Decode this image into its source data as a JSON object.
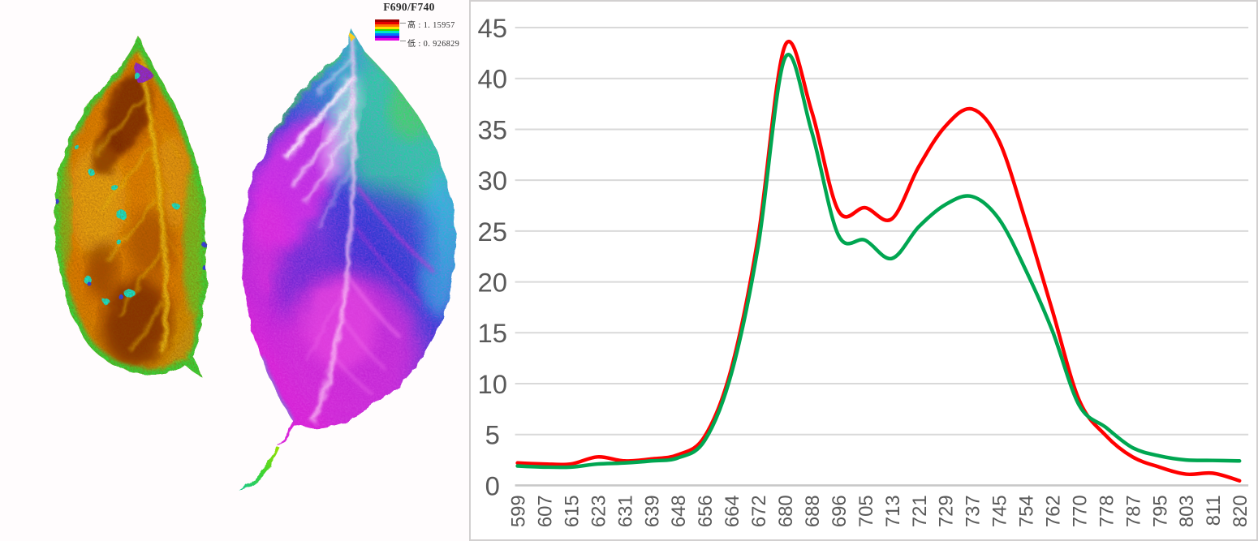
{
  "leaf_section": {
    "legend": {
      "title": "F690/F740",
      "high_label": "高",
      "high_separator": ":",
      "high_value": "1. 15957",
      "low_label": "低",
      "low_separator": ":",
      "low_value": "0. 926829",
      "colorbar_colors": [
        "#9b0000",
        "#e60000",
        "#ff7300",
        "#ffe100",
        "#2fdc00",
        "#00e6c8",
        "#0073ff",
        "#5200e6",
        "#e600e6"
      ]
    },
    "left_leaf_palette": [
      "#e07d05",
      "#7a2a00",
      "#f2c51e",
      "#35d73a",
      "#0fe8d2",
      "#8a1fe8"
    ],
    "right_leaf_palette": [
      "#2fd3a4",
      "#28a8cc",
      "#3340d6",
      "#d622d6",
      "#ffffff",
      "#3fd95c"
    ]
  },
  "chart_data": {
    "type": "line",
    "title": "",
    "xlabel": "",
    "ylabel": "",
    "x": [
      599,
      607,
      615,
      623,
      631,
      639,
      648,
      656,
      664,
      672,
      680,
      688,
      696,
      705,
      713,
      721,
      729,
      737,
      745,
      754,
      762,
      770,
      778,
      787,
      795,
      803,
      811,
      820
    ],
    "series": [
      {
        "name": "red",
        "color": "#ff0000",
        "values": [
          2.2,
          2.1,
          2.1,
          2.8,
          2.4,
          2.6,
          3.0,
          4.8,
          11.5,
          24.4,
          43.2,
          36.8,
          27.0,
          27.3,
          26.2,
          31.3,
          35.3,
          37.0,
          33.9,
          26.0,
          17.2,
          8.4,
          4.9,
          2.8,
          1.8,
          1.1,
          1.2,
          0.45
        ]
      },
      {
        "name": "green",
        "color": "#00a651",
        "values": [
          1.9,
          1.8,
          1.8,
          2.1,
          2.2,
          2.4,
          2.7,
          4.4,
          11.0,
          23.5,
          42.0,
          34.8,
          24.6,
          24.1,
          22.3,
          25.4,
          27.6,
          28.4,
          26.2,
          21.2,
          15.2,
          7.9,
          5.7,
          3.7,
          2.9,
          2.5,
          2.45,
          2.4
        ]
      }
    ],
    "ylim": [
      0,
      45
    ],
    "ytick_step": 5,
    "grid": true,
    "grid_color": "#d9d9d9",
    "axis_line_color": "#c8c8c8",
    "label_color": "#595959",
    "xticklabel_rotation": 90,
    "legend_position": "none"
  }
}
